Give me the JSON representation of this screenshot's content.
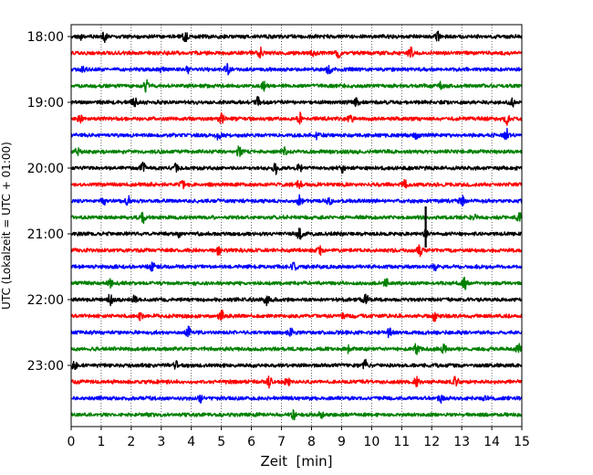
{
  "chart_data": {
    "type": "line",
    "title": "",
    "xlabel": "Zeit  [min]",
    "ylabel": "UTC (Lokalzeit = UTC + 01:00)",
    "xlim": [
      0,
      15
    ],
    "x_ticks": [
      "0",
      "1",
      "2",
      "3",
      "4",
      "5",
      "6",
      "7",
      "8",
      "9",
      "10",
      "11",
      "12",
      "13",
      "14",
      "15"
    ],
    "y_ticks": [
      "18:00",
      "19:00",
      "20:00",
      "21:00",
      "22:00",
      "23:00"
    ],
    "row_interval_min": 15,
    "first_row": "18:00",
    "last_row": "23:45",
    "vertical_grid": "dotted",
    "trace_color_cycle": [
      "#000000",
      "#ff0000",
      "#0000ff",
      "#008000"
    ],
    "traces": [
      {
        "start": "18:00",
        "color": "#000000",
        "events_min": [
          0.3,
          1.1,
          3.8,
          12.2
        ]
      },
      {
        "start": "18:15",
        "color": "#ff0000",
        "events_min": [
          6.3,
          8.1,
          8.9,
          11.3
        ]
      },
      {
        "start": "18:30",
        "color": "#0000ff",
        "events_min": [
          0.4,
          3.0,
          3.9,
          5.2,
          8.6
        ]
      },
      {
        "start": "18:45",
        "color": "#008000",
        "events_min": [
          2.5,
          6.4,
          12.3
        ]
      },
      {
        "start": "19:00",
        "color": "#000000",
        "events_min": [
          2.1,
          6.2,
          9.5,
          14.7
        ]
      },
      {
        "start": "19:15",
        "color": "#ff0000",
        "events_min": [
          0.3,
          5.0,
          7.6,
          9.3,
          14.5
        ]
      },
      {
        "start": "19:30",
        "color": "#0000ff",
        "events_min": [
          4.9,
          8.2,
          11.5,
          14.5
        ]
      },
      {
        "start": "19:45",
        "color": "#008000",
        "events_min": [
          0.2,
          5.6,
          7.1
        ]
      },
      {
        "start": "20:00",
        "color": "#000000",
        "events_min": [
          2.4,
          3.5,
          6.8,
          7.6,
          9.0
        ]
      },
      {
        "start": "20:15",
        "color": "#ff0000",
        "events_min": [
          3.7,
          7.6,
          11.1
        ]
      },
      {
        "start": "20:30",
        "color": "#0000ff",
        "events_min": [
          1.1,
          1.9,
          7.6,
          8.6,
          13.0
        ]
      },
      {
        "start": "20:45",
        "color": "#008000",
        "events_min": [
          2.4,
          13.4,
          14.9
        ]
      },
      {
        "start": "21:00",
        "color": "#000000",
        "events_min": [
          3.6,
          7.6,
          11.8
        ]
      },
      {
        "start": "21:15",
        "color": "#ff0000",
        "events_min": [
          4.9,
          8.3,
          11.6
        ]
      },
      {
        "start": "21:30",
        "color": "#0000ff",
        "events_min": [
          2.7,
          7.4,
          12.1
        ]
      },
      {
        "start": "21:45",
        "color": "#008000",
        "events_min": [
          1.3,
          10.5,
          13.1
        ]
      },
      {
        "start": "22:00",
        "color": "#000000",
        "events_min": [
          1.3,
          2.1,
          6.5,
          9.8
        ]
      },
      {
        "start": "22:15",
        "color": "#ff0000",
        "events_min": [
          2.3,
          5.0,
          9.1,
          12.1
        ]
      },
      {
        "start": "22:30",
        "color": "#0000ff",
        "events_min": [
          3.9,
          7.3,
          10.6
        ]
      },
      {
        "start": "22:45",
        "color": "#008000",
        "events_min": [
          9.2,
          11.5,
          12.4,
          14.9
        ]
      },
      {
        "start": "23:00",
        "color": "#000000",
        "events_min": [
          0.1,
          3.5,
          9.8
        ]
      },
      {
        "start": "23:15",
        "color": "#ff0000",
        "events_min": [
          6.6,
          7.2,
          11.5,
          12.8
        ]
      },
      {
        "start": "23:30",
        "color": "#0000ff",
        "events_min": [
          4.3,
          12.3,
          13.8
        ]
      },
      {
        "start": "23:45",
        "color": "#008000",
        "events_min": [
          7.4,
          8.3
        ]
      }
    ]
  }
}
